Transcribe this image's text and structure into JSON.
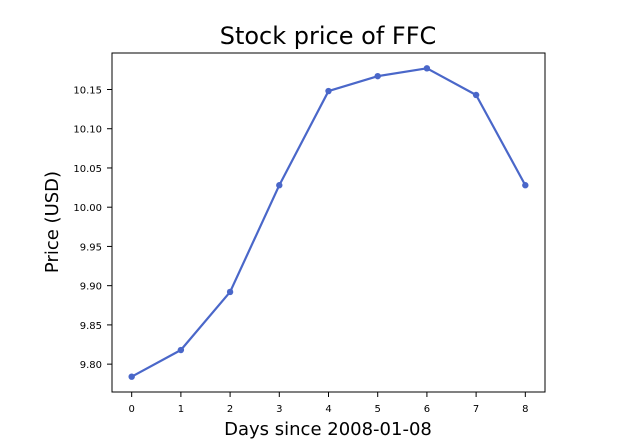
{
  "chart_data": {
    "type": "line",
    "title": "Stock price of FFC",
    "xlabel": "Days since 2008-01-08",
    "ylabel": "Price (USD)",
    "x": [
      0,
      1,
      2,
      3,
      4,
      5,
      6,
      7,
      8
    ],
    "series": [
      {
        "values": [
          9.784,
          9.818,
          9.892,
          10.028,
          10.148,
          10.167,
          10.177,
          10.143,
          10.028
        ]
      }
    ],
    "x_ticks": [
      "0",
      "1",
      "2",
      "3",
      "4",
      "5",
      "6",
      "7",
      "8"
    ],
    "y_ticks": [
      "9.80",
      "9.85",
      "9.90",
      "9.95",
      "10.00",
      "10.05",
      "10.10",
      "10.15"
    ],
    "xlim": [
      -0.4,
      8.4
    ],
    "ylim": [
      9.7645,
      10.1965
    ],
    "grid": false,
    "line_color": "#4a67c9",
    "marker": "circle"
  }
}
